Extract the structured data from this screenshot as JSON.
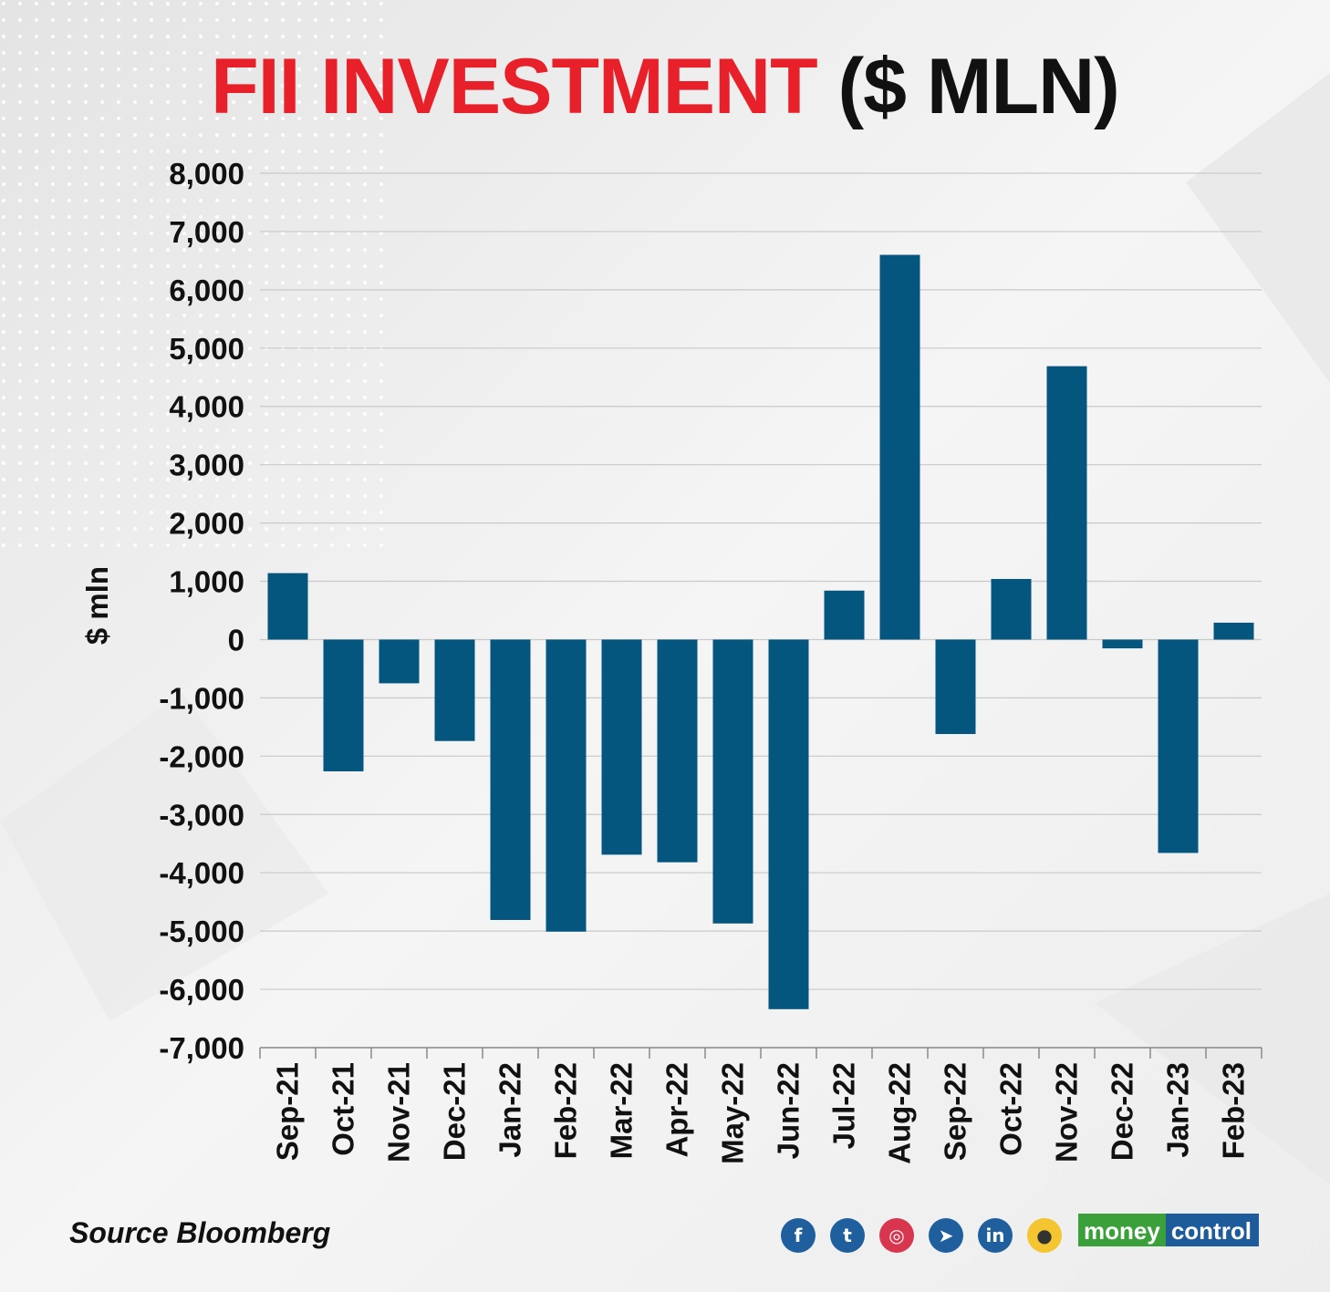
{
  "title": {
    "part1": "FII INVESTMENT",
    "part2": "($ MLN)"
  },
  "source": "Source Bloomberg",
  "socials": [
    {
      "name": "facebook-icon",
      "glyph": "f"
    },
    {
      "name": "twitter-icon",
      "glyph": "t"
    },
    {
      "name": "instagram-icon",
      "glyph": "◎"
    },
    {
      "name": "telegram-icon",
      "glyph": "➤"
    },
    {
      "name": "linkedin-icon",
      "glyph": "in"
    },
    {
      "name": "koo-icon",
      "glyph": "●"
    }
  ],
  "brand": {
    "part1": "money",
    "part2": "control"
  },
  "colors": {
    "bar": "#04567f",
    "title_red": "#e8202a",
    "grid": "#c9c9c9"
  },
  "chart_data": {
    "type": "bar",
    "title": "FII INVESTMENT ($ MLN)",
    "ylabel": "$ mln",
    "xlabel": "",
    "ylim": [
      -7000,
      8000
    ],
    "yticks": [
      8000,
      7000,
      6000,
      5000,
      4000,
      3000,
      2000,
      1000,
      0,
      -1000,
      -2000,
      -3000,
      -4000,
      -5000,
      -6000,
      -7000
    ],
    "ytick_labels": [
      "8,000",
      "7,000",
      "6,000",
      "5,000",
      "4,000",
      "3,000",
      "2,000",
      "1,000",
      "0",
      "-1,000",
      "-2,000",
      "-3,000",
      "-4,000",
      "-5,000",
      "-6,000",
      "-7,000"
    ],
    "grid": true,
    "categories": [
      "Sep-21",
      "Oct-21",
      "Nov-21",
      "Dec-21",
      "Jan-22",
      "Feb-22",
      "Mar-22",
      "Apr-22",
      "May-22",
      "Jun-22",
      "Jul-22",
      "Aug-22",
      "Sep-22",
      "Oct-22",
      "Nov-22",
      "Dec-22",
      "Jan-23",
      "Feb-23"
    ],
    "values": [
      1140,
      -2260,
      -750,
      -1740,
      -4810,
      -5010,
      -3690,
      -3820,
      -4870,
      -6340,
      840,
      6600,
      -1620,
      1040,
      4690,
      -150,
      -3660,
      290
    ]
  }
}
